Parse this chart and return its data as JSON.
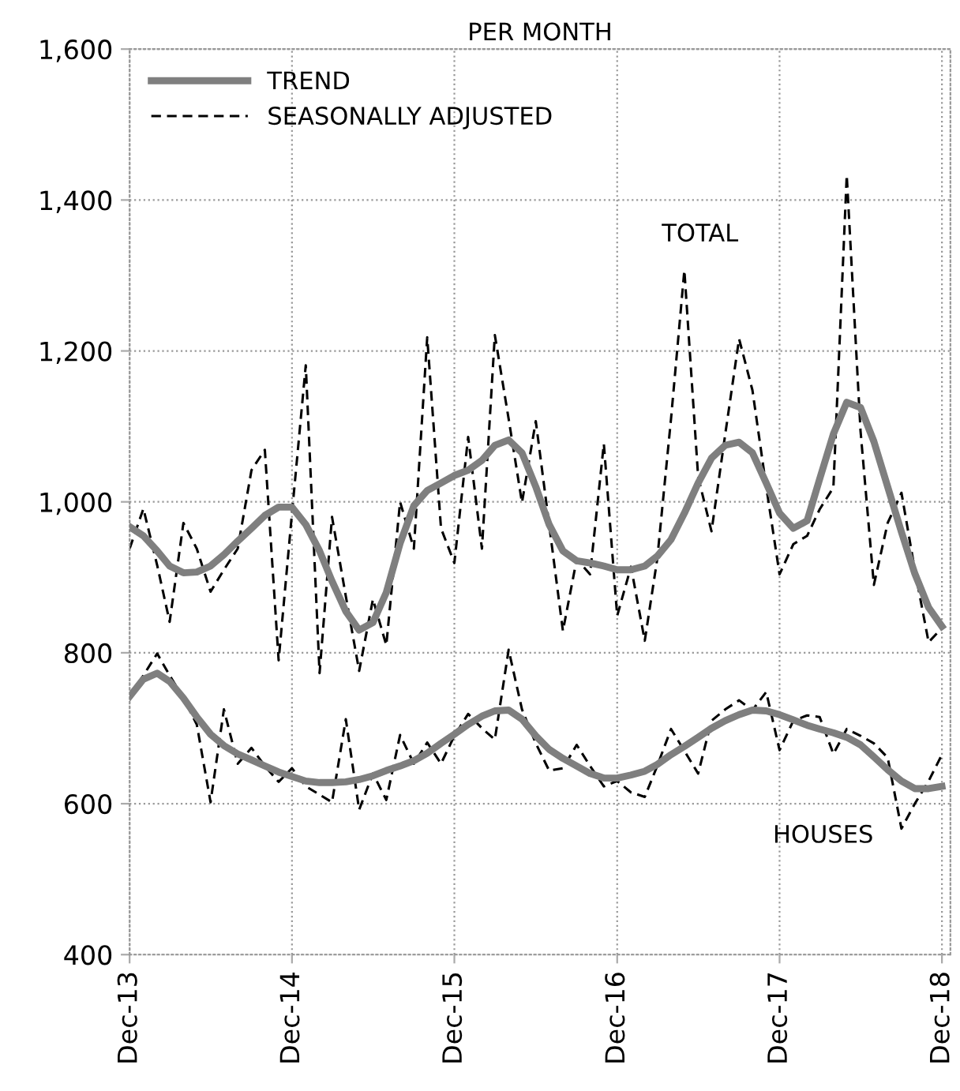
{
  "chart_data": {
    "type": "line",
    "title": "PER MONTH",
    "x": [
      "2013-12",
      "2014-01",
      "2014-02",
      "2014-03",
      "2014-04",
      "2014-05",
      "2014-06",
      "2014-07",
      "2014-08",
      "2014-09",
      "2014-10",
      "2014-11",
      "2014-12",
      "2015-01",
      "2015-02",
      "2015-03",
      "2015-04",
      "2015-05",
      "2015-06",
      "2015-07",
      "2015-08",
      "2015-09",
      "2015-10",
      "2015-11",
      "2015-12",
      "2016-01",
      "2016-02",
      "2016-03",
      "2016-04",
      "2016-05",
      "2016-06",
      "2016-07",
      "2016-08",
      "2016-09",
      "2016-10",
      "2016-11",
      "2016-12",
      "2017-01",
      "2017-02",
      "2017-03",
      "2017-04",
      "2017-05",
      "2017-06",
      "2017-07",
      "2017-08",
      "2017-09",
      "2017-10",
      "2017-11",
      "2017-12",
      "2018-01",
      "2018-02",
      "2018-03",
      "2018-04",
      "2018-05",
      "2018-06",
      "2018-07",
      "2018-08",
      "2018-09",
      "2018-10",
      "2018-11",
      "2018-12"
    ],
    "series": [
      {
        "name": "TREND",
        "color": "#7f7f7f",
        "line_style": "solid",
        "values": [
          967,
          955,
          935,
          915,
          906,
          907,
          915,
          930,
          948,
          965,
          982,
          993,
          993,
          970,
          935,
          895,
          855,
          830,
          840,
          880,
          945,
          995,
          1015,
          1025,
          1035,
          1042,
          1055,
          1075,
          1082,
          1065,
          1020,
          970,
          935,
          922,
          919,
          915,
          910,
          910,
          915,
          928,
          950,
          985,
          1025,
          1058,
          1075,
          1079,
          1065,
          1025,
          985,
          965,
          975,
          1030,
          1090,
          1132,
          1125,
          1080,
          1020,
          960,
          905,
          860,
          835
        ]
      },
      {
        "name": "SEASONALLY ADJUSTED",
        "color": "#000000",
        "line_style": "dashed",
        "values": [
          938,
          991,
          916,
          841,
          972,
          938,
          881,
          910,
          938,
          1042,
          1069,
          790,
          985,
          1181,
          773,
          980,
          875,
          776,
          871,
          810,
          1000,
          938,
          1218,
          965,
          919,
          1086,
          938,
          1221,
          1110,
          999,
          1107,
          970,
          829,
          924,
          904,
          1077,
          849,
          914,
          816,
          924,
          1110,
          1307,
          1033,
          961,
          1090,
          1216,
          1148,
          1020,
          904,
          944,
          955,
          990,
          1019,
          1433,
          1094,
          890,
          972,
          1012,
          910,
          814,
          833
        ]
      },
      {
        "color": "#7f7f7f",
        "line_style": "solid",
        "values": [
          742,
          765,
          773,
          762,
          740,
          715,
          692,
          677,
          666,
          658,
          650,
          642,
          636,
          630,
          628,
          628,
          629,
          632,
          637,
          644,
          650,
          657,
          667,
          680,
          692,
          705,
          716,
          723,
          724,
          712,
          690,
          672,
          660,
          650,
          640,
          634,
          634,
          638,
          643,
          652,
          665,
          676,
          688,
          700,
          710,
          718,
          724,
          723,
          718,
          711,
          704,
          699,
          694,
          688,
          678,
          662,
          645,
          630,
          620,
          620,
          623
        ]
      },
      {
        "color": "#000000",
        "line_style": "dashed",
        "values": [
          742,
          770,
          799,
          770,
          740,
          705,
          602,
          725,
          653,
          674,
          650,
          629,
          647,
          623,
          612,
          602,
          712,
          592,
          640,
          605,
          691,
          653,
          681,
          653,
          690,
          719,
          700,
          685,
          804,
          725,
          680,
          644,
          647,
          678,
          650,
          623,
          630,
          615,
          609,
          650,
          699,
          670,
          640,
          710,
          725,
          737,
          724,
          748,
          671,
          710,
          717,
          715,
          666,
          699,
          690,
          680,
          661,
          567,
          600,
          630,
          665
        ]
      }
    ],
    "annotations": [
      "TOTAL",
      "HOUSES"
    ],
    "xlim": [
      "2013-12",
      "2018-12-20"
    ],
    "xticks": [
      {
        "value": "2013-12",
        "label": "Dec-13"
      },
      {
        "value": "2014-12",
        "label": "Dec-14"
      },
      {
        "value": "2015-12",
        "label": "Dec-15"
      },
      {
        "value": "2016-12",
        "label": "Dec-16"
      },
      {
        "value": "2017-12",
        "label": "Dec-17"
      },
      {
        "value": "2018-12",
        "label": "Dec-18"
      }
    ],
    "ylim": [
      400,
      1600
    ],
    "yticks": [
      {
        "value": 400,
        "label": "400"
      },
      {
        "value": 600,
        "label": "600"
      },
      {
        "value": 800,
        "label": "800"
      },
      {
        "value": 1000,
        "label": "1,000"
      },
      {
        "value": 1200,
        "label": "1,200"
      },
      {
        "value": 1400,
        "label": "1,400"
      },
      {
        "value": 1600,
        "label": "1,600"
      }
    ],
    "grid": true,
    "legend": "top left",
    "marker": "none"
  }
}
